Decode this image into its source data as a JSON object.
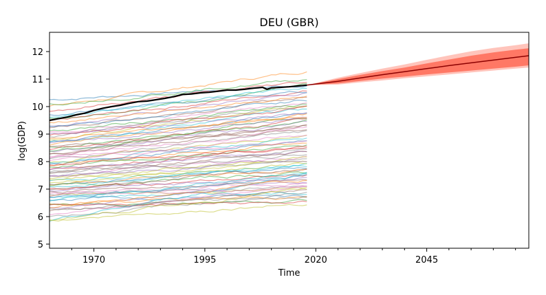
{
  "chart_data": {
    "type": "line",
    "title": "DEU (GBR)",
    "xlabel": "Time",
    "ylabel": "log(GDP)",
    "xlim": [
      1960,
      2068
    ],
    "ylim": [
      4.85,
      12.7
    ],
    "xticks": [
      1970,
      1995,
      2020,
      2045
    ],
    "yticks": [
      5,
      6,
      7,
      8,
      9,
      10,
      11,
      12
    ],
    "grid": false,
    "background_series": {
      "description_x_range": [
        1960,
        2018
      ],
      "count": 80,
      "alpha": 0.5,
      "start_values": [
        10.25,
        10.0,
        9.55,
        9.45,
        9.3,
        9.2,
        9.05,
        8.9,
        8.8,
        8.75,
        8.7,
        8.6,
        8.5,
        8.45,
        8.35,
        8.25,
        8.2,
        8.1,
        8.0,
        7.95,
        7.9,
        7.85,
        7.8,
        7.75,
        7.7,
        7.6,
        7.5,
        7.45,
        7.4,
        7.3,
        7.2,
        7.15,
        7.1,
        7.0,
        6.95,
        6.9,
        6.85,
        6.8,
        6.75,
        6.7,
        6.6,
        6.5,
        6.45,
        6.4,
        6.3,
        6.2,
        6.1,
        6.0,
        5.9,
        5.8,
        9.7,
        9.4,
        9.1,
        8.95,
        8.65,
        8.3,
        8.05,
        7.65,
        7.35,
        7.05,
        6.65,
        6.35,
        10.1,
        9.85,
        9.0,
        8.55,
        8.15,
        7.55,
        7.25,
        6.55,
        9.25,
        8.85,
        8.4,
        7.9,
        7.45,
        7.0,
        6.75,
        6.25,
        5.85,
        9.6
      ],
      "end_values": [
        10.8,
        11.3,
        10.75,
        10.6,
        10.5,
        10.35,
        10.2,
        10.1,
        10.0,
        9.9,
        9.8,
        9.7,
        9.6,
        9.5,
        9.4,
        9.3,
        9.2,
        9.1,
        9.0,
        8.9,
        8.8,
        8.7,
        8.6,
        8.5,
        8.4,
        8.3,
        8.2,
        8.1,
        8.0,
        7.9,
        7.8,
        7.7,
        7.6,
        7.5,
        7.4,
        7.3,
        7.2,
        7.1,
        7.0,
        6.9,
        6.8,
        6.7,
        6.6,
        6.5,
        7.25,
        6.95,
        7.15,
        6.85,
        7.0,
        7.6,
        10.55,
        10.4,
        10.05,
        9.95,
        9.55,
        9.35,
        8.95,
        8.45,
        8.15,
        7.85,
        7.45,
        7.35,
        11.0,
        10.9,
        9.75,
        9.15,
        8.75,
        8.25,
        7.95,
        7.65,
        10.25,
        9.65,
        9.45,
        8.55,
        8.05,
        7.75,
        7.05,
        6.75,
        6.5,
        10.7
      ],
      "colors": [
        "#1f77b4",
        "#ff7f0e",
        "#2ca02c",
        "#d62728",
        "#9467bd",
        "#8c564b",
        "#e377c2",
        "#7f7f7f",
        "#bcbd22",
        "#17becf"
      ]
    },
    "series": [
      {
        "name": "",
        "color": "#000000",
        "x": [
          1960,
          1962,
          1964,
          1966,
          1968,
          1970,
          1972,
          1974,
          1976,
          1978,
          1980,
          1982,
          1984,
          1986,
          1988,
          1990,
          1992,
          1994,
          1996,
          1998,
          2000,
          2002,
          2004,
          2006,
          2008,
          2009,
          2010,
          2012,
          2014,
          2016,
          2018
        ],
        "y": [
          9.5,
          9.56,
          9.62,
          9.7,
          9.76,
          9.86,
          9.94,
          10.0,
          10.05,
          10.12,
          10.18,
          10.2,
          10.25,
          10.3,
          10.36,
          10.44,
          10.46,
          10.5,
          10.52,
          10.56,
          10.6,
          10.6,
          10.63,
          10.67,
          10.7,
          10.63,
          10.68,
          10.7,
          10.72,
          10.75,
          10.78
        ]
      }
    ],
    "forecast": {
      "color": "#ff3b1f",
      "x": [
        2018,
        2025,
        2030,
        2035,
        2040,
        2045,
        2050,
        2055,
        2060,
        2065,
        2068
      ],
      "median": [
        10.78,
        10.92,
        11.04,
        11.16,
        11.27,
        11.38,
        11.49,
        11.59,
        11.69,
        11.79,
        11.85
      ],
      "inner_lower": [
        10.78,
        10.84,
        10.93,
        11.02,
        11.09,
        11.17,
        11.24,
        11.31,
        11.38,
        11.45,
        11.5
      ],
      "inner_upper": [
        10.78,
        11.0,
        11.15,
        11.29,
        11.42,
        11.57,
        11.71,
        11.85,
        11.97,
        12.07,
        12.12
      ],
      "outer_lower": [
        10.78,
        10.8,
        10.88,
        10.95,
        11.03,
        11.1,
        11.17,
        11.24,
        11.31,
        11.38,
        11.42
      ],
      "outer_upper": [
        10.78,
        11.05,
        11.22,
        11.38,
        11.53,
        11.7,
        11.86,
        12.01,
        12.13,
        12.23,
        12.3
      ]
    }
  }
}
